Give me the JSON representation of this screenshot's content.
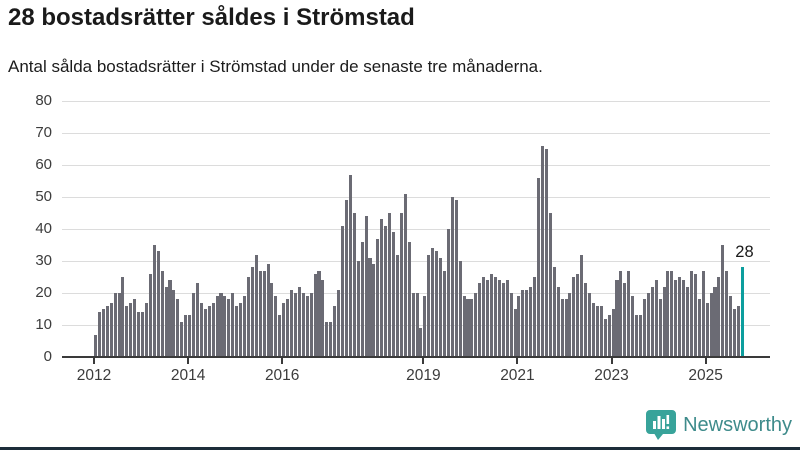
{
  "header": {
    "title": "28 bostadsrätter såldes i Strömstad",
    "subtitle": "Antal sålda bostadsrätter i Strömstad under de senaste tre månaderna."
  },
  "chart_data": {
    "type": "bar",
    "title": "28 bostadsrätter såldes i Strömstad",
    "subtitle": "Antal sålda bostadsrätter i Strömstad under de senaste tre månaderna.",
    "ylabel": "",
    "xlabel": "",
    "ylim": [
      0,
      80
    ],
    "yticks": [
      0,
      10,
      20,
      30,
      40,
      50,
      60,
      70,
      80
    ],
    "grid": true,
    "start_month": "2012-01",
    "end_month": "2025-10",
    "bar_color": "#6b6b74",
    "highlight_color": "#0c9e9e",
    "values": [
      7,
      14,
      15,
      16,
      17,
      20,
      20,
      25,
      16,
      17,
      18,
      14,
      14,
      17,
      26,
      35,
      33,
      27,
      22,
      24,
      21,
      18,
      11,
      13,
      13,
      20,
      23,
      17,
      15,
      16,
      17,
      19,
      20,
      19,
      18,
      20,
      16,
      17,
      19,
      25,
      28,
      32,
      27,
      27,
      29,
      23,
      19,
      13,
      17,
      18,
      21,
      20,
      22,
      20,
      19,
      20,
      26,
      27,
      24,
      11,
      11,
      16,
      21,
      41,
      49,
      57,
      45,
      30,
      36,
      44,
      31,
      29,
      37,
      43,
      41,
      45,
      39,
      32,
      45,
      51,
      36,
      20,
      20,
      9,
      19,
      32,
      34,
      33,
      31,
      27,
      40,
      50,
      49,
      30,
      19,
      18,
      18,
      20,
      23,
      25,
      24,
      26,
      25,
      24,
      23,
      24,
      20,
      15,
      19,
      21,
      21,
      22,
      25,
      56,
      66,
      65,
      45,
      28,
      22,
      18,
      18,
      20,
      25,
      26,
      32,
      23,
      20,
      17,
      16,
      16,
      12,
      13,
      15,
      24,
      27,
      23,
      27,
      19,
      13,
      13,
      18,
      20,
      22,
      24,
      18,
      22,
      27,
      27,
      24,
      25,
      24,
      22,
      27,
      26,
      18,
      27,
      17,
      20,
      22,
      25,
      35,
      27,
      19,
      15,
      16,
      28
    ],
    "highlight": {
      "index": 165,
      "value": 28,
      "label": "28"
    },
    "xticks": [
      {
        "label": "2012",
        "month_index": 0
      },
      {
        "label": "2014",
        "month_index": 24
      },
      {
        "label": "2016",
        "month_index": 48
      },
      {
        "label": "2019",
        "month_index": 84
      },
      {
        "label": "2021",
        "month_index": 108
      },
      {
        "label": "2023",
        "month_index": 132
      },
      {
        "label": "2025",
        "month_index": 156
      }
    ]
  },
  "footer": {
    "brand": "Newsworthy",
    "logo_icon": "bar-chart-speech-bubble-icon",
    "brand_color": "#3e8b8b",
    "icon_color": "#38a39a"
  }
}
